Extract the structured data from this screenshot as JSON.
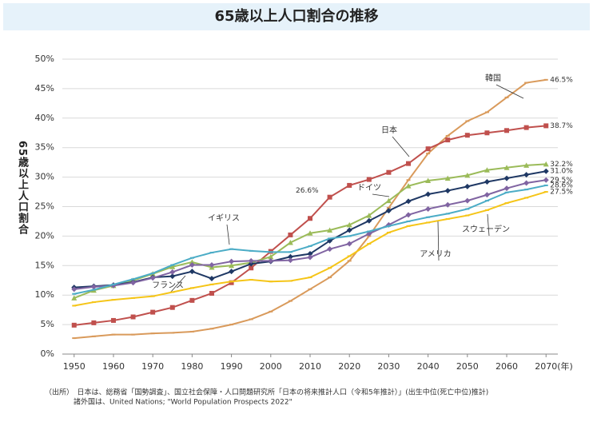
{
  "chart_data": {
    "type": "line",
    "title": "65歳以上人口割合の推移",
    "y_label": "65歳以上人口割合",
    "x_unit": "(年)",
    "x": [
      1950,
      1955,
      1960,
      1965,
      1970,
      1975,
      1980,
      1985,
      1990,
      1995,
      2000,
      2005,
      2010,
      2015,
      2020,
      2025,
      2030,
      2035,
      2040,
      2045,
      2050,
      2055,
      2060,
      2065,
      2070
    ],
    "xlim": [
      1947,
      2073
    ],
    "xticks": [
      1950,
      1960,
      1970,
      1980,
      1990,
      2000,
      2010,
      2020,
      2030,
      2040,
      2050,
      2060,
      2070
    ],
    "ylim": [
      0,
      50
    ],
    "yticks": [
      {
        "value": 0,
        "label": "0%"
      },
      {
        "value": 5,
        "label": "5%"
      },
      {
        "value": 10,
        "label": "10%"
      },
      {
        "value": 15,
        "label": "15%"
      },
      {
        "value": 20,
        "label": "20%"
      },
      {
        "value": 25,
        "label": "25%"
      },
      {
        "value": 30,
        "label": "30%"
      },
      {
        "value": 35,
        "label": "35%"
      },
      {
        "value": 40,
        "label": "40%"
      },
      {
        "value": 45,
        "label": "45%"
      },
      {
        "value": 50,
        "label": "50%"
      }
    ],
    "grid": true,
    "series": [
      {
        "name": "韓国",
        "color": "#d99a5b",
        "marker": "dash",
        "values": [
          2.7,
          3.0,
          3.3,
          3.3,
          3.5,
          3.6,
          3.8,
          4.3,
          5.0,
          5.9,
          7.2,
          9.0,
          11.0,
          13.0,
          15.8,
          20.0,
          24.8,
          29.5,
          34.0,
          37.0,
          39.5,
          41.0,
          43.5,
          46.0,
          46.5
        ],
        "value_labels": [
          null,
          null,
          null,
          null,
          null,
          null,
          null,
          null,
          null,
          null,
          null,
          null,
          null,
          null,
          null,
          null,
          null,
          null,
          null,
          null,
          null,
          null,
          null,
          null,
          "46.5%"
        ]
      },
      {
        "name": "日本",
        "color": "#c0504d",
        "marker": "square",
        "values": [
          4.9,
          5.3,
          5.7,
          6.3,
          7.1,
          7.9,
          9.1,
          10.3,
          12.1,
          14.6,
          17.4,
          20.2,
          23.0,
          26.6,
          28.6,
          29.6,
          30.8,
          32.3,
          34.8,
          36.3,
          37.1,
          37.5,
          37.9,
          38.4,
          38.7
        ],
        "value_labels": [
          null,
          null,
          null,
          null,
          null,
          null,
          null,
          null,
          null,
          null,
          null,
          null,
          null,
          "26.6%",
          null,
          null,
          null,
          null,
          null,
          null,
          null,
          null,
          null,
          null,
          "38.7%"
        ]
      },
      {
        "name": "ドイツ",
        "color": "#9bbb59",
        "marker": "triangle",
        "values": [
          9.5,
          10.8,
          11.6,
          12.5,
          13.6,
          14.8,
          15.6,
          14.7,
          15.0,
          15.5,
          16.5,
          18.9,
          20.5,
          21.0,
          21.9,
          23.5,
          26.0,
          28.5,
          29.4,
          29.8,
          30.3,
          31.2,
          31.6,
          32.0,
          32.2
        ],
        "value_labels": [
          null,
          null,
          null,
          null,
          null,
          null,
          null,
          null,
          null,
          null,
          null,
          null,
          null,
          null,
          null,
          null,
          null,
          null,
          null,
          null,
          null,
          null,
          null,
          null,
          "32.2%"
        ]
      },
      {
        "name": "イギリス",
        "color": "#1f3864",
        "marker": "diamond",
        "values": [
          11.3,
          11.5,
          11.7,
          12.2,
          13.0,
          13.2,
          14.0,
          12.8,
          14.0,
          15.3,
          15.7,
          16.5,
          17.0,
          19.2,
          21.0,
          22.6,
          24.3,
          25.9,
          27.1,
          27.7,
          28.4,
          29.2,
          29.8,
          30.4,
          31.0
        ],
        "value_labels": [
          null,
          null,
          null,
          null,
          null,
          null,
          null,
          null,
          null,
          null,
          null,
          null,
          null,
          null,
          null,
          null,
          null,
          null,
          null,
          null,
          null,
          null,
          null,
          null,
          "31.0%"
        ]
      },
      {
        "name": "フランス",
        "color": "#8064a2",
        "marker": "diamond",
        "values": [
          11.0,
          11.4,
          11.6,
          12.1,
          12.9,
          13.9,
          15.1,
          15.1,
          15.7,
          15.8,
          15.8,
          15.9,
          16.4,
          17.8,
          18.7,
          20.4,
          21.9,
          23.6,
          24.6,
          25.3,
          26.0,
          27.0,
          28.1,
          29.0,
          29.5
        ],
        "value_labels": [
          null,
          null,
          null,
          null,
          null,
          null,
          null,
          null,
          null,
          null,
          null,
          null,
          null,
          null,
          null,
          null,
          null,
          null,
          null,
          null,
          null,
          null,
          null,
          null,
          "29.5%"
        ]
      },
      {
        "name": "スウェーデン",
        "color": "#4bacc6",
        "marker": "dash",
        "values": [
          10.2,
          10.9,
          11.8,
          12.7,
          13.7,
          15.1,
          16.3,
          17.2,
          17.8,
          17.5,
          17.3,
          17.3,
          18.3,
          19.6,
          20.0,
          20.8,
          21.7,
          22.5,
          23.2,
          23.8,
          24.6,
          26.0,
          27.4,
          27.9,
          28.6
        ],
        "value_labels": [
          null,
          null,
          null,
          null,
          null,
          null,
          null,
          null,
          null,
          null,
          null,
          null,
          null,
          null,
          null,
          null,
          null,
          null,
          null,
          null,
          null,
          null,
          null,
          null,
          "28.6%"
        ]
      },
      {
        "name": "アメリカ",
        "color": "#f5c518",
        "marker": "dash",
        "values": [
          8.2,
          8.8,
          9.2,
          9.5,
          9.8,
          10.5,
          11.2,
          11.8,
          12.3,
          12.6,
          12.3,
          12.4,
          13.0,
          14.6,
          16.6,
          18.7,
          20.6,
          21.7,
          22.3,
          22.9,
          23.5,
          24.4,
          25.6,
          26.5,
          27.5
        ],
        "value_labels": [
          null,
          null,
          null,
          null,
          null,
          null,
          null,
          null,
          null,
          null,
          null,
          null,
          null,
          null,
          null,
          null,
          null,
          null,
          null,
          null,
          null,
          null,
          null,
          null,
          "27.5%"
        ]
      }
    ],
    "notes": [
      "（出所）　日本は、総務省「国勢調査」、国立社会保障・人口問題研究所「日本の将来推計人口（令和5年推計）」(出生中位(死亡中位)推計)",
      "諸外国は、United Nations; \"World Population Prospects 2022\""
    ]
  }
}
